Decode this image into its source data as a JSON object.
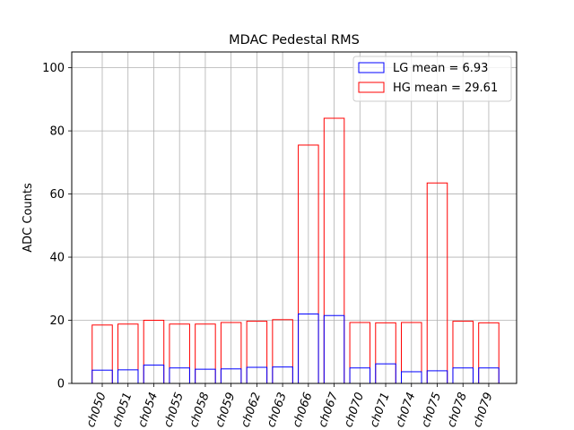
{
  "chart_data": {
    "type": "bar",
    "title": "MDAC Pedestal RMS",
    "xlabel": "",
    "ylabel": "ADC Counts",
    "ylim": [
      0,
      105
    ],
    "yticks": [
      0,
      20,
      40,
      60,
      80,
      100
    ],
    "grid": true,
    "legend_position": "top-right",
    "categories": [
      "ch050",
      "ch051",
      "ch054",
      "ch055",
      "ch058",
      "ch059",
      "ch062",
      "ch063",
      "ch066",
      "ch067",
      "ch070",
      "ch071",
      "ch074",
      "ch075",
      "ch078",
      "ch079"
    ],
    "series": [
      {
        "name": "LG mean = 6.93",
        "color": "#0000ff",
        "values": [
          4.2,
          4.3,
          5.8,
          4.9,
          4.5,
          4.6,
          5.1,
          5.2,
          22.0,
          21.5,
          4.9,
          6.2,
          3.7,
          4.0,
          4.9,
          4.9
        ]
      },
      {
        "name": "HG mean = 29.61",
        "color": "#ff0000",
        "values": [
          18.5,
          18.8,
          20.0,
          18.8,
          18.8,
          19.3,
          19.7,
          20.2,
          75.5,
          84.0,
          19.3,
          19.2,
          19.3,
          63.5,
          19.7,
          19.2
        ]
      }
    ]
  }
}
